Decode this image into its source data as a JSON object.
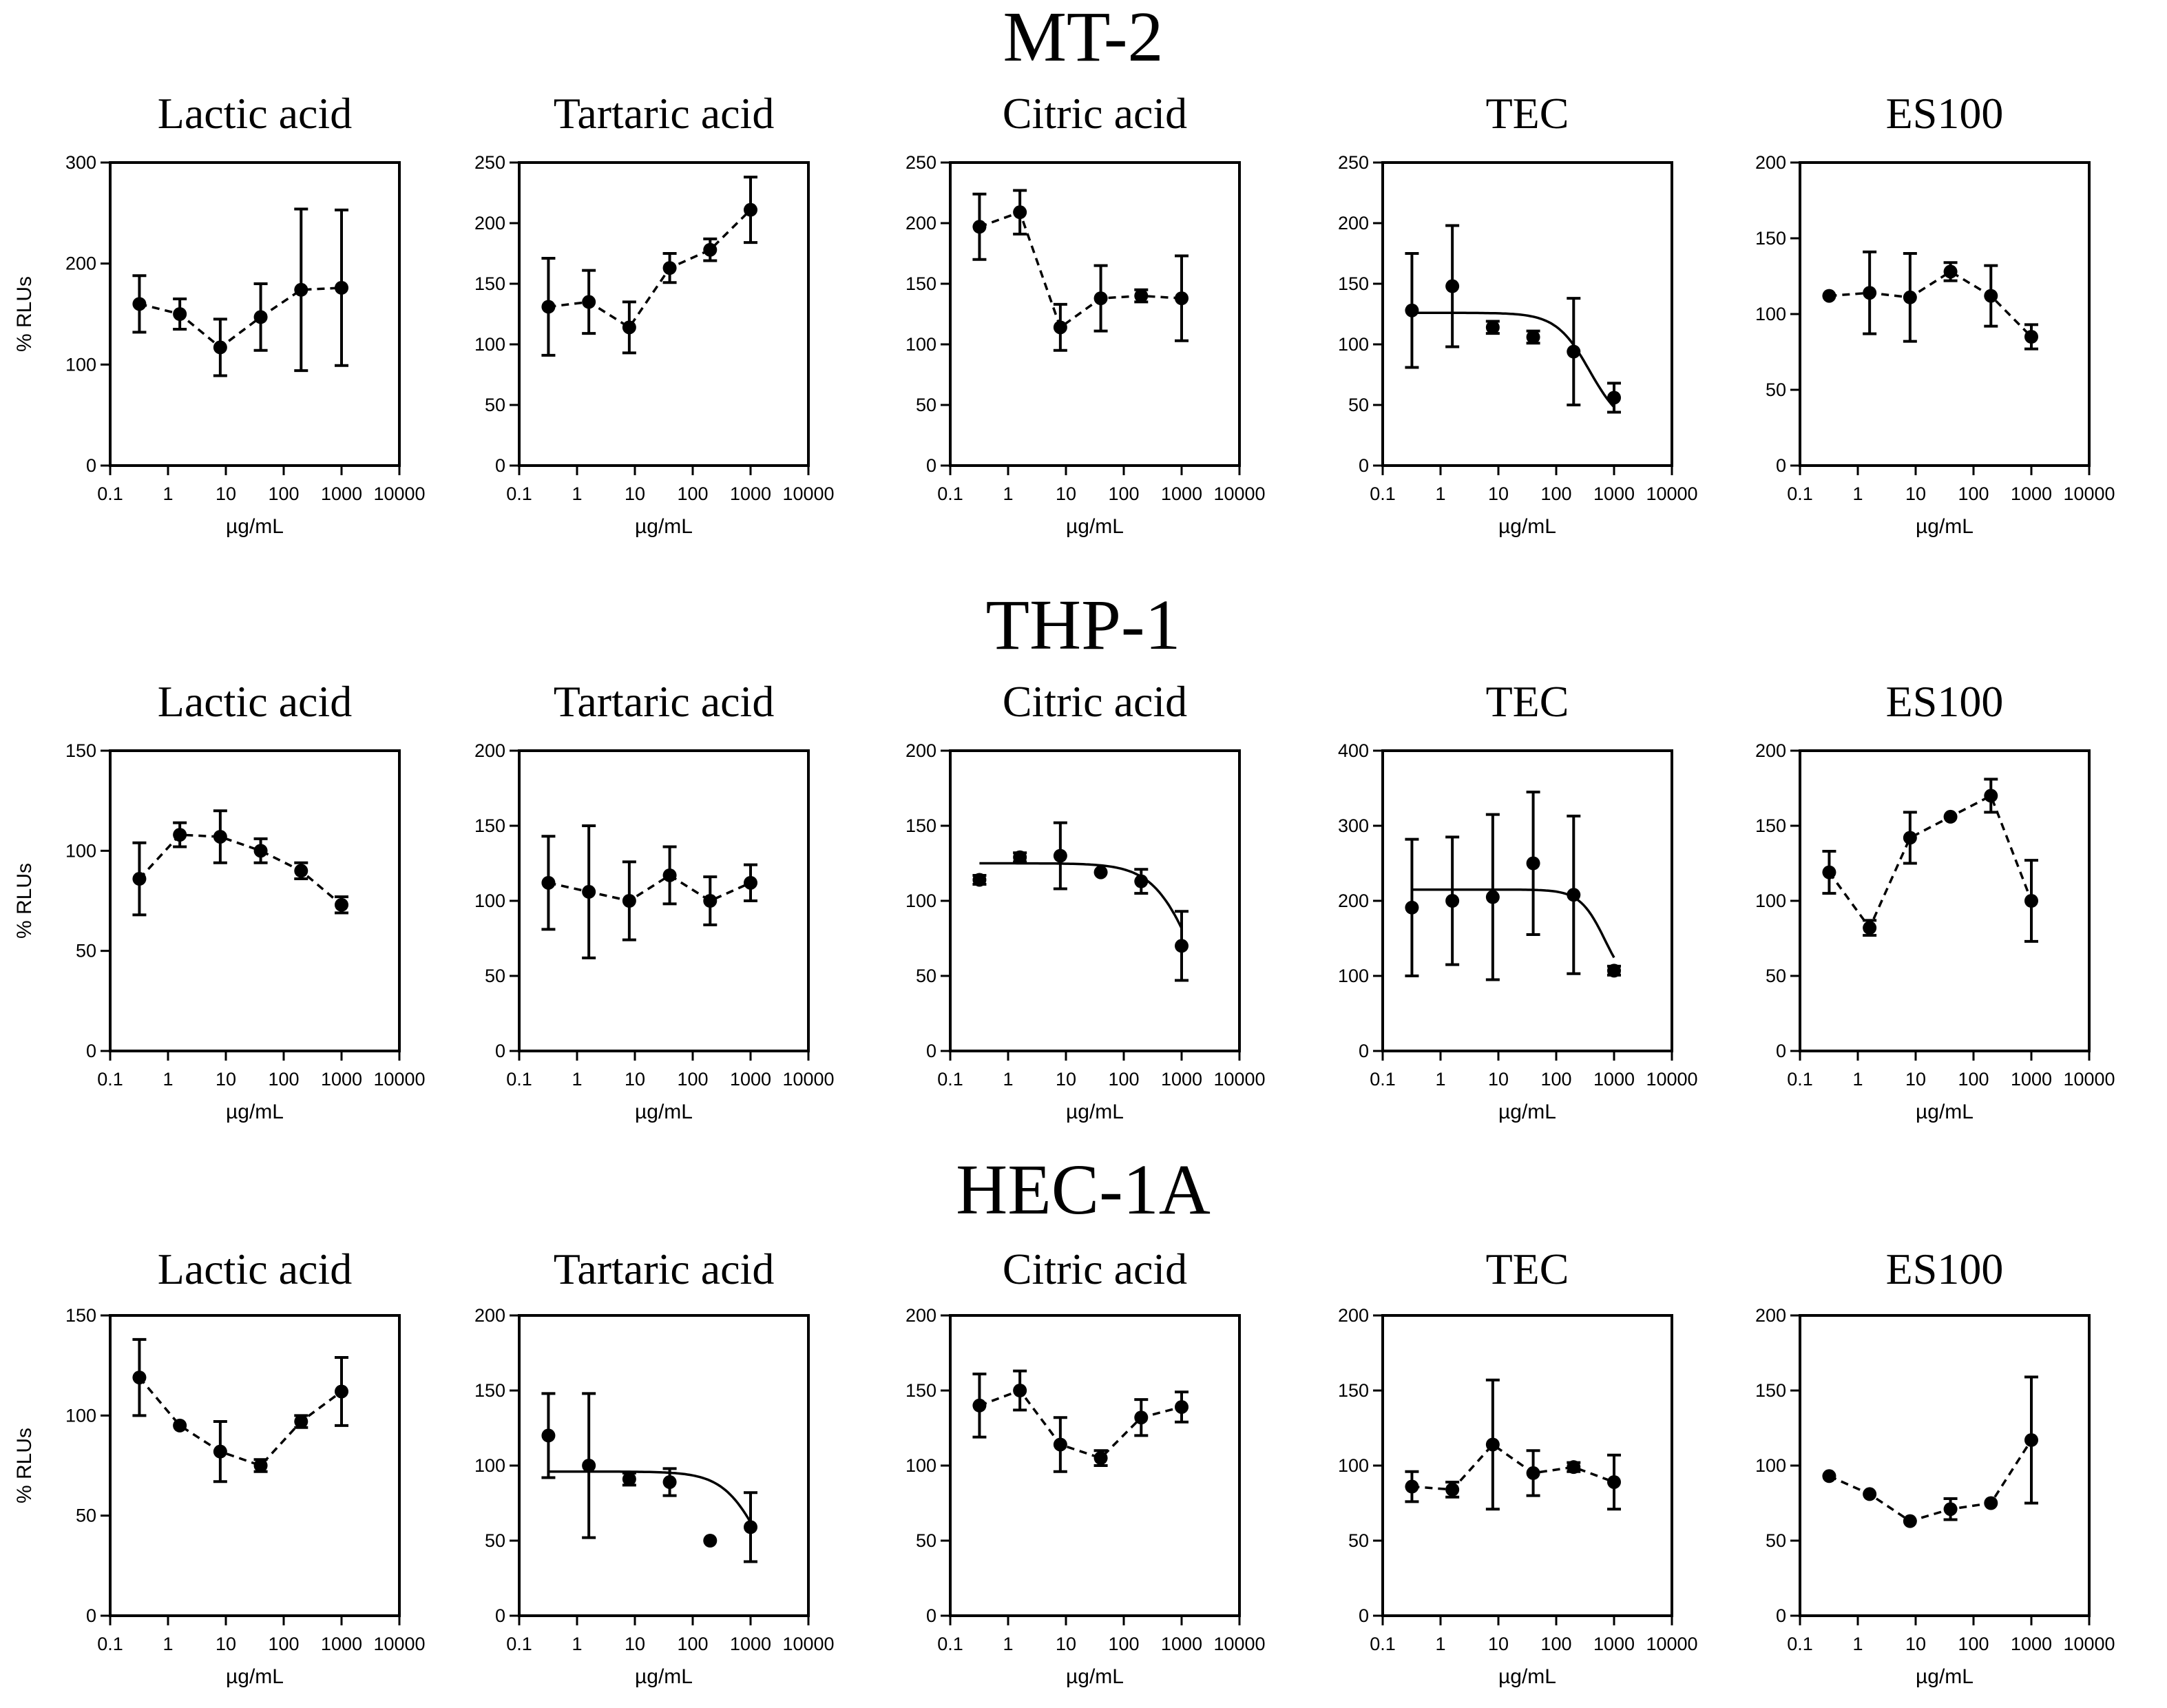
{
  "figure": {
    "row_titles": [
      "MT-2",
      "THP-1",
      "HEC-1A"
    ],
    "ylabel": "% RLUs",
    "xlabel": "µg/mL",
    "x_ticks": [
      0.1,
      1,
      10,
      100,
      1000,
      10000
    ],
    "x_tick_labels": [
      "0.1",
      "1",
      "10",
      "100",
      "1000",
      "10000"
    ],
    "x_values": [
      0.32,
      1.6,
      8,
      40,
      200,
      1000
    ]
  },
  "chart_data": [
    {
      "type": "scatter",
      "row": "MT-2",
      "title": "Lactic acid",
      "xlabel": "µg/mL",
      "ylabel": "% RLUs",
      "xscale": "log",
      "xlim": [
        0.1,
        10000
      ],
      "ylim": [
        0,
        300
      ],
      "yticks": [
        0,
        100,
        200,
        300
      ],
      "series": [
        {
          "name": "Lactic acid",
          "x": [
            0.32,
            1.6,
            8,
            40,
            200,
            1000
          ],
          "y": [
            160,
            150,
            117,
            147,
            174,
            176
          ],
          "err": [
            28,
            15,
            28,
            33,
            80,
            77
          ],
          "line": "dashed"
        }
      ]
    },
    {
      "type": "scatter",
      "row": "MT-2",
      "title": "Tartaric acid",
      "xlabel": "µg/mL",
      "ylabel": "",
      "xscale": "log",
      "xlim": [
        0.1,
        10000
      ],
      "ylim": [
        0,
        250
      ],
      "yticks": [
        0,
        50,
        100,
        150,
        200,
        250
      ],
      "series": [
        {
          "name": "Tartaric acid",
          "x": [
            0.32,
            1.6,
            8,
            40,
            200,
            1000
          ],
          "y": [
            131,
            135,
            114,
            163,
            178,
            211
          ],
          "err": [
            40,
            26,
            21,
            12,
            9,
            27
          ],
          "line": "dashed"
        }
      ]
    },
    {
      "type": "scatter",
      "row": "MT-2",
      "title": "Citric acid",
      "xlabel": "µg/mL",
      "ylabel": "",
      "xscale": "log",
      "xlim": [
        0.1,
        10000
      ],
      "ylim": [
        0,
        250
      ],
      "yticks": [
        0,
        50,
        100,
        150,
        200,
        250
      ],
      "series": [
        {
          "name": "Citric acid",
          "x": [
            0.32,
            1.6,
            8,
            40,
            200,
            1000
          ],
          "y": [
            197,
            209,
            114,
            138,
            140,
            138
          ],
          "err": [
            27,
            18,
            19,
            27,
            5,
            35
          ],
          "line": "dashed"
        }
      ]
    },
    {
      "type": "scatter",
      "row": "MT-2",
      "title": "TEC",
      "xlabel": "µg/mL",
      "ylabel": "",
      "xscale": "log",
      "xlim": [
        0.1,
        10000
      ],
      "ylim": [
        0,
        250
      ],
      "yticks": [
        0,
        50,
        100,
        150,
        200,
        250
      ],
      "series": [
        {
          "name": "TEC",
          "x": [
            0.32,
            1.6,
            8,
            40,
            200,
            1000
          ],
          "y": [
            128,
            148,
            114,
            106,
            94,
            56
          ],
          "err": [
            47,
            50,
            5,
            5,
            44,
            12
          ],
          "line": "none"
        }
      ],
      "fit": {
        "top": 126,
        "bottom": 30,
        "ec50": 380,
        "hill": 1.5
      }
    },
    {
      "type": "scatter",
      "row": "MT-2",
      "title": "ES100",
      "xlabel": "µg/mL",
      "ylabel": "",
      "xscale": "log",
      "xlim": [
        0.1,
        10000
      ],
      "ylim": [
        0,
        200
      ],
      "yticks": [
        0,
        50,
        100,
        150,
        200
      ],
      "series": [
        {
          "name": "ES100",
          "x": [
            0.32,
            1.6,
            8,
            40,
            200,
            1000
          ],
          "y": [
            112,
            114,
            111,
            128,
            112,
            85
          ],
          "err": [
            0,
            27,
            29,
            6,
            20,
            8
          ],
          "line": "dashed"
        }
      ]
    },
    {
      "type": "scatter",
      "row": "THP-1",
      "title": "Lactic acid",
      "xlabel": "µg/mL",
      "ylabel": "% RLUs",
      "xscale": "log",
      "xlim": [
        0.1,
        10000
      ],
      "ylim": [
        0,
        150
      ],
      "yticks": [
        0,
        50,
        100,
        150
      ],
      "series": [
        {
          "name": "Lactic acid",
          "x": [
            0.32,
            1.6,
            8,
            40,
            200,
            1000
          ],
          "y": [
            86,
            108,
            107,
            100,
            90,
            73
          ],
          "err": [
            18,
            6,
            13,
            6,
            4,
            4
          ],
          "line": "dashed"
        }
      ]
    },
    {
      "type": "scatter",
      "row": "THP-1",
      "title": "Tartaric acid",
      "xlabel": "µg/mL",
      "ylabel": "",
      "xscale": "log",
      "xlim": [
        0.1,
        10000
      ],
      "ylim": [
        0,
        200
      ],
      "yticks": [
        0,
        50,
        100,
        150,
        200
      ],
      "series": [
        {
          "name": "Tartaric acid",
          "x": [
            0.32,
            1.6,
            8,
            40,
            200,
            1000
          ],
          "y": [
            112,
            106,
            100,
            117,
            100,
            112
          ],
          "err": [
            31,
            44,
            26,
            19,
            16,
            12
          ],
          "line": "dashed"
        }
      ]
    },
    {
      "type": "scatter",
      "row": "THP-1",
      "title": "Citric acid",
      "xlabel": "µg/mL",
      "ylabel": "",
      "xscale": "log",
      "xlim": [
        0.1,
        10000
      ],
      "ylim": [
        0,
        200
      ],
      "yticks": [
        0,
        50,
        100,
        150,
        200
      ],
      "series": [
        {
          "name": "Citric acid",
          "x": [
            0.32,
            1.6,
            8,
            40,
            200,
            1000
          ],
          "y": [
            114,
            129,
            130,
            119,
            113,
            70
          ],
          "err": [
            3,
            3,
            22,
            0,
            8,
            23
          ],
          "line": "none"
        }
      ],
      "fit": {
        "top": 125,
        "bottom": 0,
        "ec50": 1700,
        "hill": 1.2
      }
    },
    {
      "type": "scatter",
      "row": "THP-1",
      "title": "TEC",
      "xlabel": "µg/mL",
      "ylabel": "",
      "xscale": "log",
      "xlim": [
        0.1,
        10000
      ],
      "ylim": [
        0,
        400
      ],
      "yticks": [
        0,
        100,
        200,
        300,
        400
      ],
      "series": [
        {
          "name": "TEC",
          "x": [
            0.32,
            1.6,
            8,
            40,
            200,
            1000
          ],
          "y": [
            191,
            200,
            205,
            250,
            208,
            107
          ],
          "err": [
            91,
            85,
            110,
            95,
            105,
            6
          ],
          "line": "none"
        }
      ],
      "fit": {
        "top": 215,
        "bottom": 80,
        "ec50": 700,
        "hill": 2
      }
    },
    {
      "type": "scatter",
      "row": "THP-1",
      "title": "ES100",
      "xlabel": "µg/mL",
      "ylabel": "",
      "xscale": "log",
      "xlim": [
        0.1,
        10000
      ],
      "ylim": [
        0,
        200
      ],
      "yticks": [
        0,
        50,
        100,
        150,
        200
      ],
      "series": [
        {
          "name": "ES100",
          "x": [
            0.32,
            1.6,
            8,
            40,
            200,
            1000
          ],
          "y": [
            119,
            82,
            142,
            156,
            170,
            100
          ],
          "err": [
            14,
            5,
            17,
            0,
            11,
            27
          ],
          "line": "dashed"
        }
      ]
    },
    {
      "type": "scatter",
      "row": "HEC-1A",
      "title": "Lactic acid",
      "xlabel": "µg/mL",
      "ylabel": "% RLUs",
      "xscale": "log",
      "xlim": [
        0.1,
        10000
      ],
      "ylim": [
        0,
        150
      ],
      "yticks": [
        0,
        50,
        100,
        150
      ],
      "series": [
        {
          "name": "Lactic acid",
          "x": [
            0.32,
            1.6,
            8,
            40,
            200,
            1000
          ],
          "y": [
            119,
            95,
            82,
            75,
            97,
            112
          ],
          "err": [
            19,
            0,
            15,
            3,
            3,
            17
          ],
          "line": "dashed"
        }
      ]
    },
    {
      "type": "scatter",
      "row": "HEC-1A",
      "title": "Tartaric acid",
      "xlabel": "µg/mL",
      "ylabel": "",
      "xscale": "log",
      "xlim": [
        0.1,
        10000
      ],
      "ylim": [
        0,
        200
      ],
      "yticks": [
        0,
        50,
        100,
        150,
        200
      ],
      "series": [
        {
          "name": "Tartaric acid",
          "x": [
            0.32,
            1.6,
            8,
            40,
            200,
            1000
          ],
          "y": [
            120,
            100,
            91,
            89,
            50,
            59
          ],
          "err": [
            28,
            48,
            4,
            9,
            0,
            23
          ],
          "line": "none"
        }
      ],
      "fit": {
        "top": 96,
        "bottom": 0,
        "ec50": 1600,
        "hill": 1.3
      }
    },
    {
      "type": "scatter",
      "row": "HEC-1A",
      "title": "Citric acid",
      "xlabel": "µg/mL",
      "ylabel": "",
      "xscale": "log",
      "xlim": [
        0.1,
        10000
      ],
      "ylim": [
        0,
        200
      ],
      "yticks": [
        0,
        50,
        100,
        150,
        200
      ],
      "series": [
        {
          "name": "Citric acid",
          "x": [
            0.32,
            1.6,
            8,
            40,
            200,
            1000
          ],
          "y": [
            140,
            150,
            114,
            105,
            132,
            139
          ],
          "err": [
            21,
            13,
            18,
            5,
            12,
            10
          ],
          "line": "dashed"
        }
      ]
    },
    {
      "type": "scatter",
      "row": "HEC-1A",
      "title": "TEC",
      "xlabel": "µg/mL",
      "ylabel": "",
      "xscale": "log",
      "xlim": [
        0.1,
        10000
      ],
      "ylim": [
        0,
        200
      ],
      "yticks": [
        0,
        50,
        100,
        150,
        200
      ],
      "series": [
        {
          "name": "TEC",
          "x": [
            0.32,
            1.6,
            8,
            40,
            200,
            1000
          ],
          "y": [
            86,
            84,
            114,
            95,
            99,
            89
          ],
          "err": [
            10,
            5,
            43,
            15,
            3,
            18
          ],
          "line": "dashed"
        }
      ]
    },
    {
      "type": "scatter",
      "row": "HEC-1A",
      "title": "ES100",
      "xlabel": "µg/mL",
      "ylabel": "",
      "xscale": "log",
      "xlim": [
        0.1,
        10000
      ],
      "ylim": [
        0,
        200
      ],
      "yticks": [
        0,
        50,
        100,
        150,
        200
      ],
      "series": [
        {
          "name": "ES100",
          "x": [
            0.32,
            1.6,
            8,
            40,
            200,
            1000
          ],
          "y": [
            93,
            81,
            63,
            71,
            75,
            117
          ],
          "err": [
            0,
            0,
            0,
            7,
            0,
            42
          ],
          "line": "dashed"
        }
      ]
    }
  ]
}
